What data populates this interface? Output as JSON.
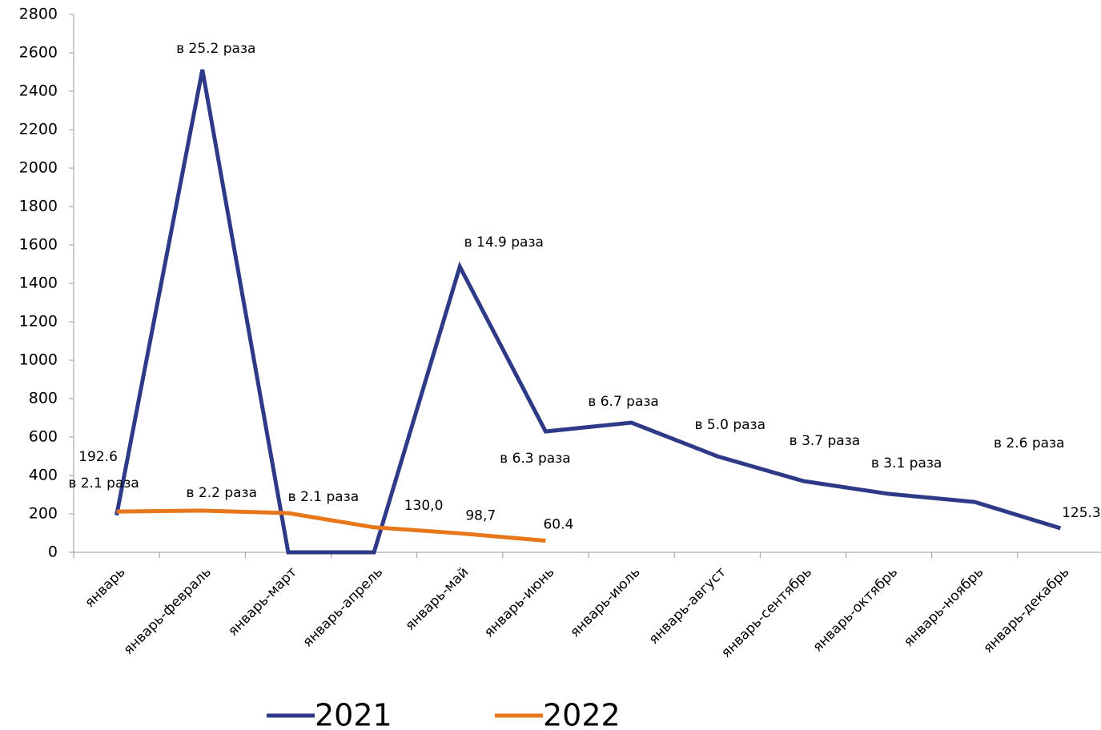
{
  "chart_data": {
    "type": "line",
    "categories": [
      "январь",
      "январь-февраль",
      "январь-март",
      "январь-апрель",
      "январь-май",
      "январь-июнь",
      "январь-июль",
      "январь-август",
      "январь-сентябрь",
      "январь-октябрь",
      "январь-ноябрь",
      "январь-декабрь"
    ],
    "series": [
      {
        "name": "2021",
        "color": "#2e3a87",
        "values": [
          192.6,
          2512,
          0,
          0,
          1487,
          629,
          675,
          500,
          371,
          304,
          262,
          125.3
        ],
        "labels": [
          "192.6",
          "в  25.2 раза",
          null,
          null,
          "в 14.9 раза",
          "в 6.3 раза",
          "в 6.7 раза",
          "в 5.0 раза",
          "в 3.7 раза",
          "в 3.1 раза",
          "в 2.6 раза",
          "125.3"
        ]
      },
      {
        "name": "2022",
        "color": "#e8761b",
        "values": [
          212,
          217,
          204,
          130,
          98.7,
          60.4,
          null,
          null,
          null,
          null,
          null,
          null
        ],
        "labels": [
          "в 2.1 раза",
          "в 2.2 раза",
          "в 2.1 раза",
          "130,0",
          "98,7",
          "60.4",
          null,
          null,
          null,
          null,
          null,
          null
        ]
      }
    ],
    "ylim": [
      0,
      2800
    ],
    "yticks": [
      0,
      200,
      400,
      600,
      800,
      1000,
      1200,
      1400,
      1600,
      1800,
      2000,
      2200,
      2400,
      2600,
      2800
    ],
    "grid": false,
    "legend": "bottom"
  }
}
